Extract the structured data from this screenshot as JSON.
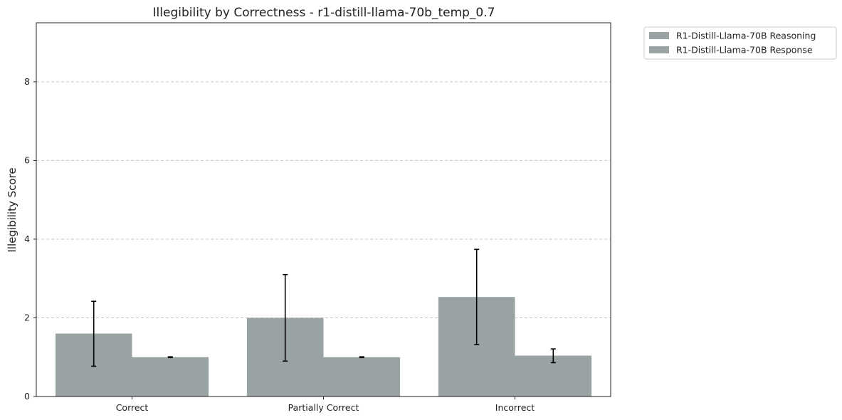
{
  "chart_data": {
    "type": "bar",
    "title": "Illegibility by Correctness - r1-distill-llama-70b_temp_0.7",
    "xlabel": "",
    "ylabel": "Illegibility Score",
    "categories": [
      "Correct",
      "Partially Correct",
      "Incorrect"
    ],
    "ylim": [
      0,
      9.5
    ],
    "yticks": [
      0,
      2,
      4,
      6,
      8
    ],
    "grid": "y-dashed",
    "legend_position": "outside-top-right",
    "series": [
      {
        "name": "R1-Distill-Llama-70B Reasoning",
        "color": "#99a3a4",
        "values": [
          1.6,
          2.0,
          2.53
        ],
        "error_low": [
          0.77,
          0.9,
          1.32
        ],
        "error_high": [
          2.42,
          3.1,
          3.74
        ]
      },
      {
        "name": "R1-Distill-Llama-70B Response",
        "color": "#99a3a4",
        "values": [
          1.0,
          1.0,
          1.04
        ],
        "error_low": [
          0.99,
          0.99,
          0.86
        ],
        "error_high": [
          1.01,
          1.01,
          1.21
        ]
      }
    ]
  }
}
